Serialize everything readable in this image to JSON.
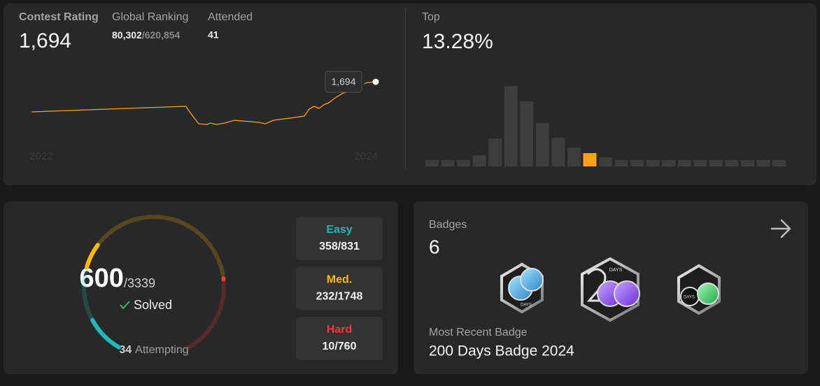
{
  "contest": {
    "rating_label": "Contest Rating",
    "rating": "1,694",
    "ranking_label": "Global Ranking",
    "ranking": "80,302",
    "ranking_total": "/620,854",
    "attended_label": "Attended",
    "attended": "41",
    "top_label": "Top",
    "top": "13.28%"
  },
  "rating_chart": {
    "type": "line",
    "color": "#ffa116",
    "x": [
      2021.94,
      2022.89,
      2022.93,
      2022.97,
      2023.02,
      2023.04,
      2023.08,
      2023.13,
      2023.19,
      2023.34,
      2023.38,
      2023.43,
      2023.56,
      2023.62,
      2023.65,
      2023.68,
      2023.71,
      2023.74,
      2023.77,
      2023.81,
      2023.86,
      2023.93,
      2023.97,
      2024.01,
      2024.06
    ],
    "values": [
      1565,
      1589,
      1550,
      1514,
      1511,
      1517,
      1511,
      1517,
      1529,
      1520,
      1514,
      1529,
      1541,
      1547,
      1577,
      1589,
      1580,
      1595,
      1604,
      1625,
      1646,
      1658,
      1682,
      1691,
      1694
    ],
    "xticks": [
      2022,
      2024
    ]
  },
  "distribution_chart": {
    "type": "bar",
    "color": "#3d3d3d",
    "highlight_color": "#ffa116",
    "highlight_index": 10,
    "values": [
      9,
      9,
      9,
      16,
      40,
      115,
      93,
      62,
      41,
      27,
      19,
      13,
      9,
      9,
      9,
      9,
      9,
      9,
      9,
      9,
      9,
      9,
      9
    ]
  },
  "problems": {
    "solved": 600,
    "separator": "/",
    "total": 3339,
    "solved_label": "Solved",
    "attempting": 34,
    "attempting_label": "Attempting",
    "difficulties": [
      {
        "label": "Easy",
        "solved": 358,
        "total": 831,
        "color": "#1cbaba"
      },
      {
        "label": "Med.",
        "solved": 232,
        "total": 1748,
        "color": "#ffb700"
      },
      {
        "label": "Hard",
        "solved": 10,
        "total": 760,
        "color": "#f63737"
      }
    ]
  },
  "badges": {
    "title": "Badges",
    "count": "6",
    "recent_label": "Most Recent Badge",
    "recent_name": "200 Days Badge 2024",
    "icon_labels": [
      "DAYS",
      "DAYS",
      "DAYS"
    ]
  }
}
